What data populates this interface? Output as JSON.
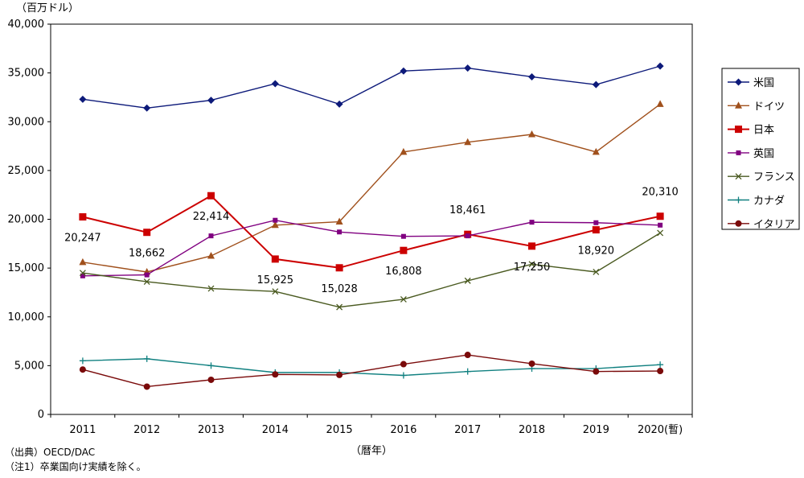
{
  "chart_data": {
    "type": "line",
    "unit_label": "（百万ドル）",
    "xlabel": "（暦年）",
    "categories": [
      "2011",
      "2012",
      "2013",
      "2014",
      "2015",
      "2016",
      "2017",
      "2018",
      "2019",
      "2020(暫)"
    ],
    "ylim": [
      0,
      40000
    ],
    "yticks": [
      "0",
      "5,000",
      "10,000",
      "15,000",
      "20,000",
      "25,000",
      "30,000",
      "35,000",
      "40,000"
    ],
    "legend_position": "right",
    "grid": false,
    "series": [
      {
        "name": "米国",
        "color": "#0d1a7a",
        "marker": "diamond",
        "values": [
          32300,
          31400,
          32200,
          33900,
          31800,
          35200,
          35500,
          34600,
          33800,
          35700
        ]
      },
      {
        "name": "ドイツ",
        "color": "#a0501c",
        "marker": "triangle",
        "values": [
          15600,
          14600,
          16250,
          19400,
          19750,
          26900,
          27900,
          28700,
          26900,
          31800
        ]
      },
      {
        "name": "日本",
        "color": "#cc0000",
        "marker": "square",
        "values": [
          20247,
          18662,
          22414,
          15925,
          15028,
          16808,
          18461,
          17250,
          18920,
          20310
        ],
        "data_labels": [
          "20,247",
          "18,662",
          "22,414",
          "15,925",
          "15,028",
          "16,808",
          "18,461",
          "17,250",
          "18,920",
          "20,310"
        ]
      },
      {
        "name": "英国",
        "color": "#800080",
        "marker": "smallsquare",
        "values": [
          14200,
          14300,
          18300,
          19900,
          18700,
          18250,
          18300,
          19700,
          19650,
          19400
        ]
      },
      {
        "name": "フランス",
        "color": "#4a5a20",
        "marker": "x",
        "values": [
          14500,
          13600,
          12900,
          12600,
          11000,
          11800,
          13700,
          15400,
          14600,
          18600
        ]
      },
      {
        "name": "カナダ",
        "color": "#108080",
        "marker": "plus",
        "values": [
          5500,
          5700,
          5000,
          4300,
          4300,
          4000,
          4400,
          4700,
          4700,
          5100
        ]
      },
      {
        "name": "イタリア",
        "color": "#7a0a0a",
        "marker": "circle",
        "values": [
          4600,
          2850,
          3550,
          4100,
          4050,
          5150,
          6100,
          5200,
          4400,
          4450
        ]
      }
    ]
  },
  "notes": {
    "source": "（出典）OECD/DAC",
    "note1": "（注1）卒業国向け実績を除く。"
  }
}
